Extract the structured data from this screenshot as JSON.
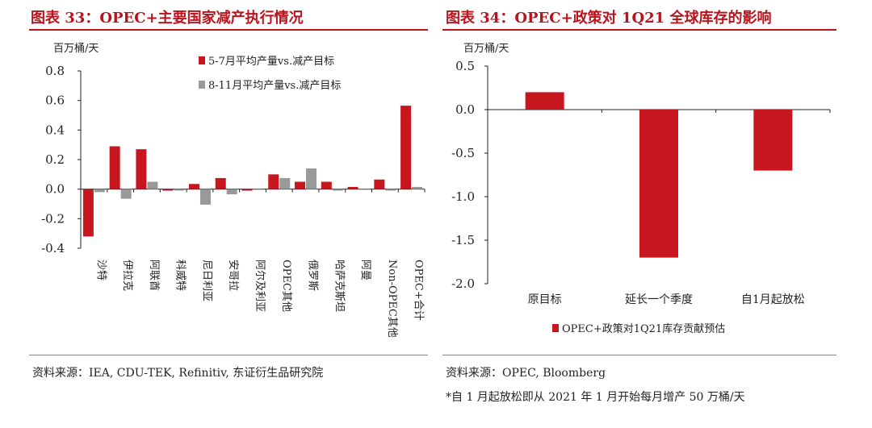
{
  "left": {
    "title": "图表 33：OPEC+主要国家减产执行情况",
    "source": "资料来源：IEA, CDU-TEK, Refinitiv, 东证衍生品研究院",
    "colors": {
      "series1": "#c8161e",
      "series2": "#999999"
    }
  },
  "right": {
    "title": "图表 34：OPEC+政策对 1Q21 全球库存的影响",
    "source": "资料来源：OPEC, Bloomberg",
    "note": "*自 1 月起放松即从 2021 年 1 月开始每月增产 50 万桶/天",
    "colors": {
      "series1": "#c8161e"
    }
  },
  "chart_data": [
    {
      "type": "bar",
      "ylabel": "百万桶/天",
      "ylim": [
        -0.4,
        0.8
      ],
      "yticks": [
        "0.8",
        "0.6",
        "0.4",
        "0.2",
        "0.0",
        "-0.2",
        "-0.4"
      ],
      "ytick_values": [
        0.8,
        0.6,
        0.4,
        0.2,
        0.0,
        -0.2,
        -0.4
      ],
      "legend_position": "top-left",
      "categories": [
        "沙特",
        "伊拉克",
        "阿联酋",
        "科威特",
        "尼日利亚",
        "安哥拉",
        "阿尔及利亚",
        "OPEC其他",
        "俄罗斯",
        "哈萨克斯坦",
        "阿曼",
        "Non-OPEC其他",
        "OPEC+合计"
      ],
      "series": [
        {
          "name": "5-7月平均产量vs.减产目标",
          "values": [
            -0.32,
            0.29,
            0.27,
            -0.01,
            0.035,
            0.075,
            -0.01,
            0.1,
            0.05,
            0.05,
            0.015,
            0.065,
            0.565
          ]
        },
        {
          "name": "8-11月平均产量vs.减产目标",
          "values": [
            -0.02,
            -0.065,
            0.05,
            -0.01,
            -0.105,
            -0.035,
            0.0,
            0.075,
            0.14,
            -0.01,
            0.0,
            -0.01,
            0.015
          ]
        }
      ]
    },
    {
      "type": "bar",
      "ylabel": "百万桶/天",
      "ylim": [
        -2.0,
        0.5
      ],
      "yticks": [
        "0.5",
        "0.0",
        "-0.5",
        "-1.0",
        "-1.5",
        "-2.0"
      ],
      "ytick_values": [
        0.5,
        0.0,
        -0.5,
        -1.0,
        -1.5,
        -2.0
      ],
      "legend_position": "bottom",
      "categories": [
        "原目标",
        "延长一个季度",
        "自1月起放松"
      ],
      "series": [
        {
          "name": "OPEC+政策对1Q21库存贡献预估",
          "values": [
            0.2,
            -1.7,
            -0.7
          ]
        }
      ]
    }
  ]
}
